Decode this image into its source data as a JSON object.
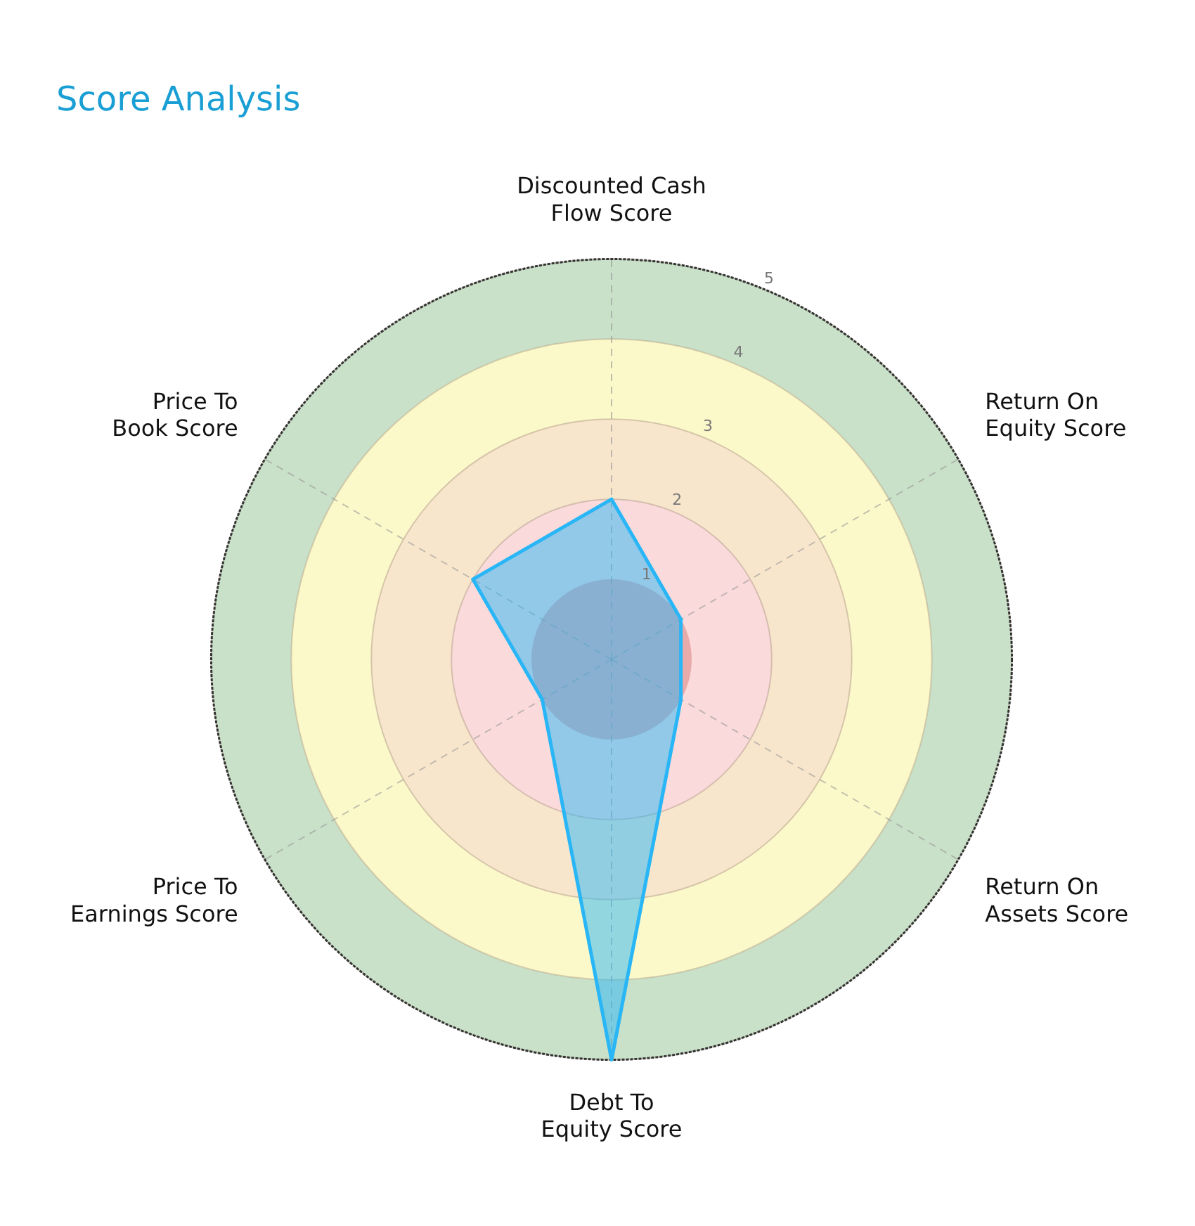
{
  "chart_data": {
    "type": "radar",
    "title": "Score Analysis",
    "categories": [
      "Discounted Cash Flow Score",
      "Return On Equity Score",
      "Return On Assets Score",
      "Debt To Equity Score",
      "Price To Earnings Score",
      "Price To Book Score"
    ],
    "series": [
      {
        "color": "#29b6f6",
        "values": [
          2,
          1,
          1,
          5,
          1,
          2
        ]
      }
    ],
    "ylim": [
      0,
      5
    ],
    "yticks": [
      1,
      2,
      3,
      4,
      5
    ],
    "grid": true,
    "legend": false,
    "marker": "none",
    "line_style": "solid"
  }
}
